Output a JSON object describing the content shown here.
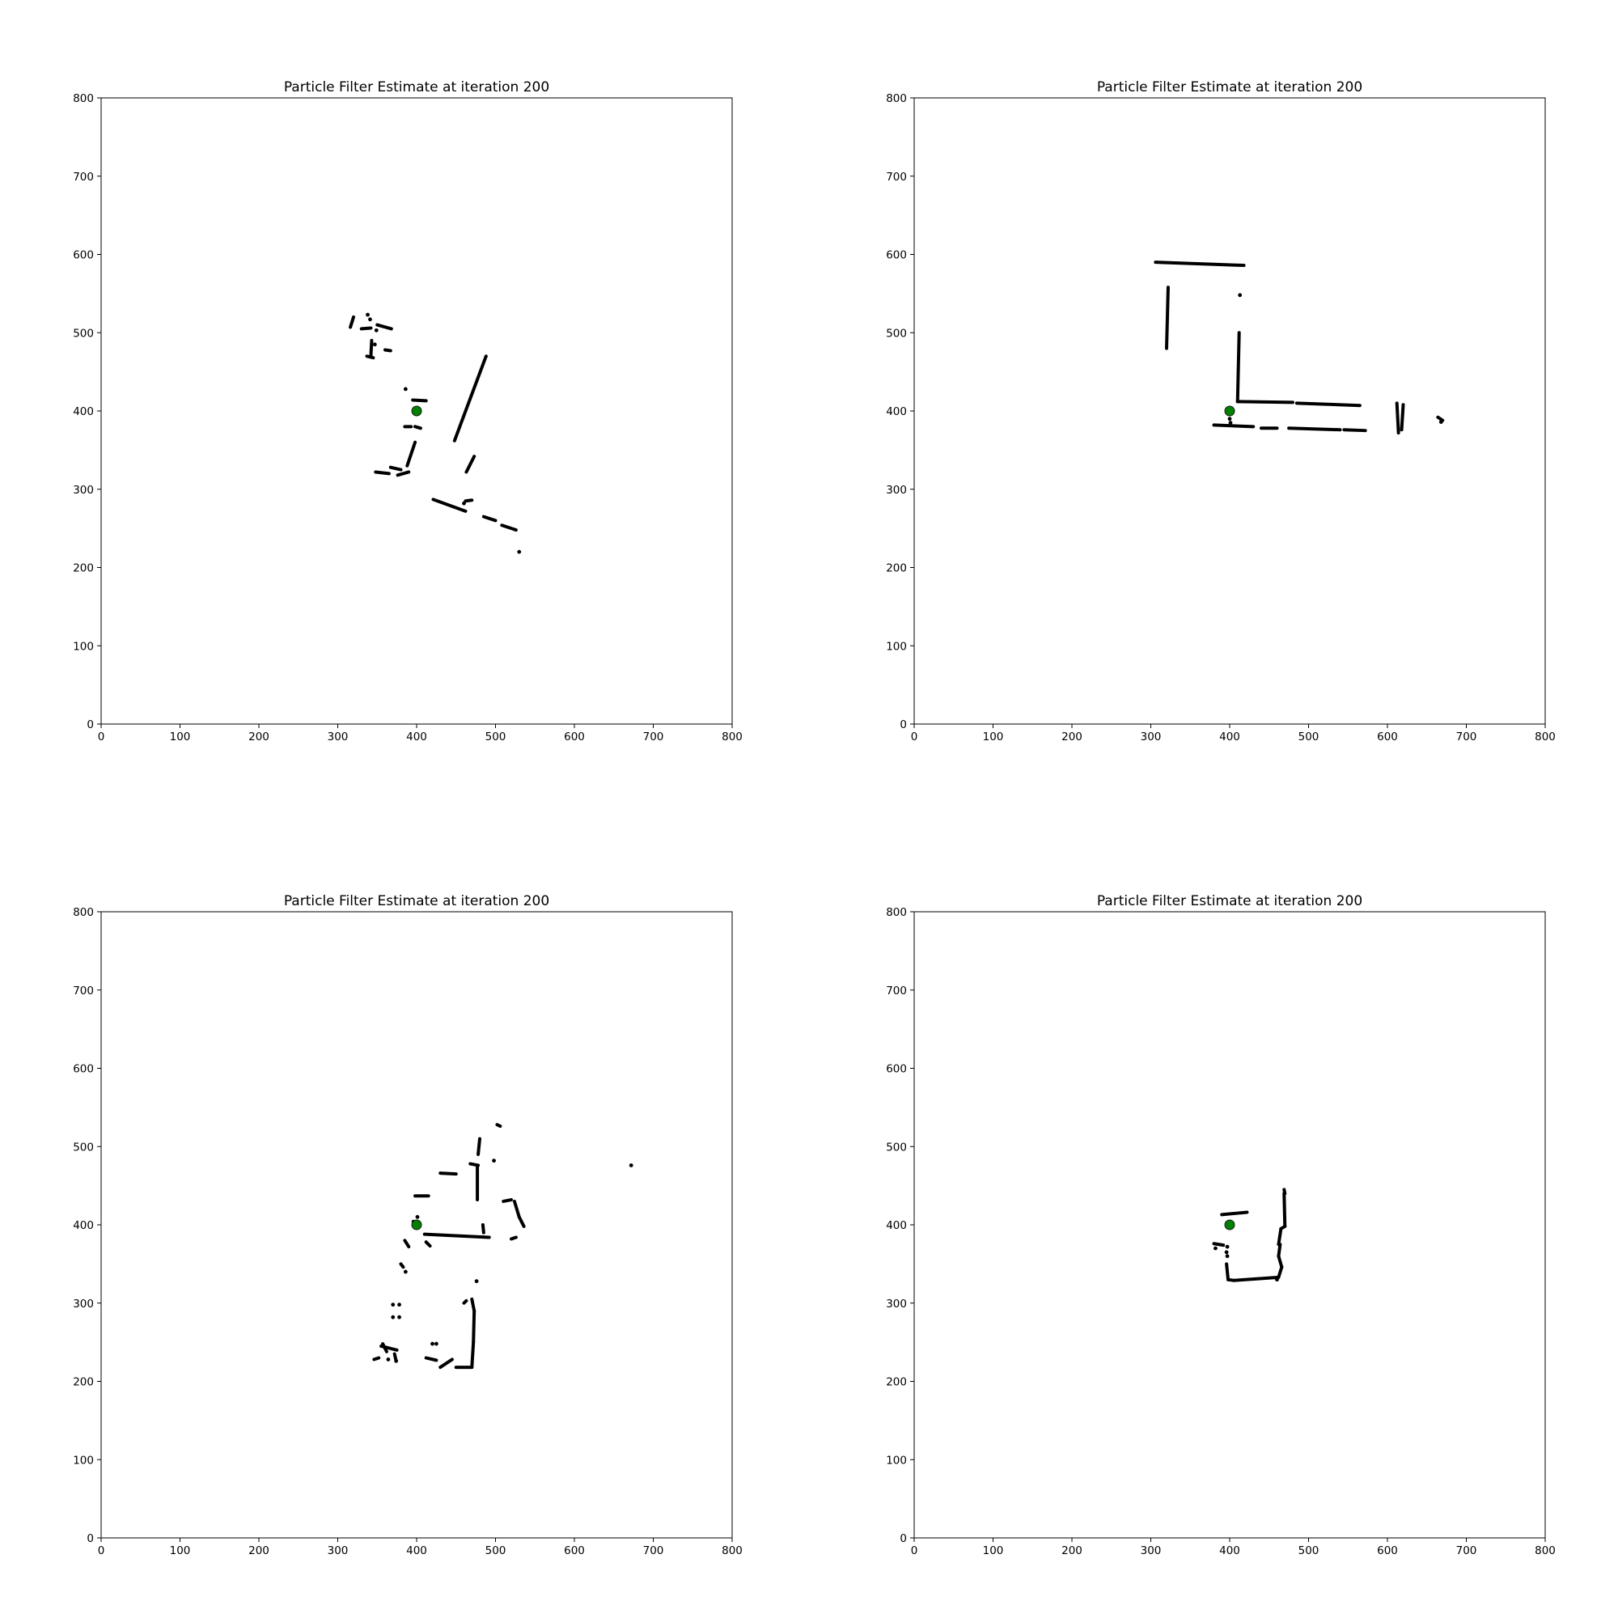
{
  "chart_data": [
    {
      "type": "scatter",
      "title": "Particle Filter Estimate at iteration 200",
      "xlabel": "",
      "ylabel": "",
      "xlim": [
        0,
        800
      ],
      "ylim": [
        0,
        800
      ],
      "xticks": [
        0,
        100,
        200,
        300,
        400,
        500,
        600,
        700,
        800
      ],
      "yticks": [
        0,
        100,
        200,
        300,
        400,
        500,
        600,
        700,
        800
      ],
      "grid": false,
      "estimate": {
        "x": 400,
        "y": 400,
        "color": "#008000"
      },
      "obstacle_color": "#000000",
      "segments": [
        [
          [
            320,
            520
          ],
          [
            316,
            507
          ]
        ],
        [
          [
            330,
            505
          ],
          [
            342,
            506
          ]
        ],
        [
          [
            350,
            510
          ],
          [
            368,
            505
          ]
        ],
        [
          [
            343,
            490
          ],
          [
            342,
            470
          ]
        ],
        [
          [
            337,
            470
          ],
          [
            345,
            468
          ]
        ],
        [
          [
            360,
            478
          ],
          [
            367,
            477
          ]
        ],
        [
          [
            395,
            414
          ],
          [
            412,
            413
          ]
        ],
        [
          [
            385,
            380
          ],
          [
            393,
            380
          ]
        ],
        [
          [
            398,
            380
          ],
          [
            405,
            378
          ]
        ],
        [
          [
            398,
            360
          ],
          [
            388,
            330
          ]
        ],
        [
          [
            348,
            322
          ],
          [
            365,
            320
          ]
        ],
        [
          [
            367,
            328
          ],
          [
            380,
            325
          ]
        ],
        [
          [
            376,
            318
          ],
          [
            390,
            322
          ]
        ],
        [
          [
            448,
            362
          ],
          [
            488,
            470
          ]
        ],
        [
          [
            463,
            322
          ],
          [
            473,
            342
          ]
        ],
        [
          [
            421,
            287
          ],
          [
            462,
            272
          ]
        ],
        [
          [
            462,
            285
          ],
          [
            470,
            286
          ]
        ],
        [
          [
            485,
            265
          ],
          [
            500,
            260
          ]
        ],
        [
          [
            508,
            254
          ],
          [
            526,
            248
          ]
        ]
      ],
      "points": [
        [
          338,
          523
        ],
        [
          341,
          517
        ],
        [
          349,
          503
        ],
        [
          347,
          485
        ],
        [
          386,
          428
        ],
        [
          460,
          282
        ],
        [
          530,
          220
        ]
      ]
    },
    {
      "type": "scatter",
      "title": "Particle Filter Estimate at iteration 200",
      "xlabel": "",
      "ylabel": "",
      "xlim": [
        0,
        800
      ],
      "ylim": [
        0,
        800
      ],
      "xticks": [
        0,
        100,
        200,
        300,
        400,
        500,
        600,
        700,
        800
      ],
      "yticks": [
        0,
        100,
        200,
        300,
        400,
        500,
        600,
        700,
        800
      ],
      "grid": false,
      "estimate": {
        "x": 400,
        "y": 400,
        "color": "#008000"
      },
      "obstacle_color": "#000000",
      "segments": [
        [
          [
            306,
            590
          ],
          [
            418,
            586
          ]
        ],
        [
          [
            322,
            558
          ],
          [
            320,
            480
          ]
        ],
        [
          [
            412,
            500
          ],
          [
            410,
            412
          ]
        ],
        [
          [
            410,
            412
          ],
          [
            480,
            411
          ]
        ],
        [
          [
            485,
            410
          ],
          [
            565,
            407
          ]
        ],
        [
          [
            380,
            382
          ],
          [
            430,
            380
          ]
        ],
        [
          [
            440,
            378
          ],
          [
            460,
            378
          ]
        ],
        [
          [
            475,
            378
          ],
          [
            540,
            376
          ]
        ],
        [
          [
            545,
            376
          ],
          [
            572,
            375
          ]
        ],
        [
          [
            612,
            410
          ],
          [
            614,
            372
          ]
        ],
        [
          [
            620,
            408
          ],
          [
            618,
            376
          ]
        ],
        [
          [
            664,
            392
          ],
          [
            670,
            388
          ]
        ]
      ],
      "points": [
        [
          400,
          390
        ],
        [
          401,
          385
        ],
        [
          413,
          548
        ],
        [
          668,
          386
        ]
      ]
    },
    {
      "type": "scatter",
      "title": "Particle Filter Estimate at iteration 200",
      "xlabel": "",
      "ylabel": "",
      "xlim": [
        0,
        800
      ],
      "ylim": [
        0,
        800
      ],
      "xticks": [
        0,
        100,
        200,
        300,
        400,
        500,
        600,
        700,
        800
      ],
      "yticks": [
        0,
        100,
        200,
        300,
        400,
        500,
        600,
        700,
        800
      ],
      "grid": false,
      "estimate": {
        "x": 400,
        "y": 400,
        "color": "#008000"
      },
      "obstacle_color": "#000000",
      "segments": [
        [
          [
            410,
            388
          ],
          [
            492,
            384
          ]
        ],
        [
          [
            398,
            437
          ],
          [
            415,
            437
          ]
        ],
        [
          [
            430,
            466
          ],
          [
            450,
            465
          ]
        ],
        [
          [
            468,
            478
          ],
          [
            478,
            476
          ]
        ],
        [
          [
            477,
            475
          ],
          [
            477,
            432
          ]
        ],
        [
          [
            478,
            490
          ],
          [
            480,
            510
          ]
        ],
        [
          [
            502,
            528
          ],
          [
            506,
            526
          ]
        ],
        [
          [
            510,
            430
          ],
          [
            520,
            432
          ]
        ],
        [
          [
            524,
            430
          ],
          [
            530,
            410
          ]
        ],
        [
          [
            530,
            410
          ],
          [
            536,
            398
          ]
        ],
        [
          [
            520,
            382
          ],
          [
            526,
            384
          ]
        ],
        [
          [
            484,
            400
          ],
          [
            485,
            390
          ]
        ],
        [
          [
            385,
            380
          ],
          [
            390,
            372
          ]
        ],
        [
          [
            380,
            350
          ],
          [
            383,
            346
          ]
        ],
        [
          [
            412,
            378
          ],
          [
            417,
            373
          ]
        ],
        [
          [
            470,
            305
          ],
          [
            473,
            290
          ]
        ],
        [
          [
            473,
            290
          ],
          [
            472,
            250
          ]
        ],
        [
          [
            472,
            250
          ],
          [
            470,
            218
          ]
        ],
        [
          [
            450,
            218
          ],
          [
            470,
            218
          ]
        ],
        [
          [
            430,
            218
          ],
          [
            445,
            228
          ]
        ],
        [
          [
            412,
            230
          ],
          [
            425,
            227
          ]
        ],
        [
          [
            346,
            228
          ],
          [
            352,
            230
          ]
        ],
        [
          [
            355,
            245
          ],
          [
            375,
            240
          ]
        ],
        [
          [
            372,
            235
          ],
          [
            374,
            226
          ]
        ],
        [
          [
            357,
            248
          ],
          [
            362,
            238
          ]
        ],
        [
          [
            460,
            300
          ],
          [
            463,
            303
          ]
        ]
      ],
      "points": [
        [
          370,
          298
        ],
        [
          378,
          298
        ],
        [
          370,
          282
        ],
        [
          378,
          282
        ],
        [
          374,
          226
        ],
        [
          364,
          228
        ],
        [
          386,
          340
        ],
        [
          420,
          248
        ],
        [
          425,
          248
        ],
        [
          476,
          328
        ],
        [
          498,
          482
        ],
        [
          672,
          476
        ],
        [
          396,
          404
        ],
        [
          401,
          410
        ]
      ]
    },
    {
      "type": "scatter",
      "title": "Particle Filter Estimate at iteration 200",
      "xlabel": "",
      "ylabel": "",
      "xlim": [
        0,
        800
      ],
      "ylim": [
        0,
        800
      ],
      "xticks": [
        0,
        100,
        200,
        300,
        400,
        500,
        600,
        700,
        800
      ],
      "yticks": [
        0,
        100,
        200,
        300,
        400,
        500,
        600,
        700,
        800
      ],
      "grid": false,
      "estimate": {
        "x": 400,
        "y": 400,
        "color": "#008000"
      },
      "obstacle_color": "#000000",
      "segments": [
        [
          [
            390,
            413
          ],
          [
            422,
            416
          ]
        ],
        [
          [
            380,
            376
          ],
          [
            392,
            374
          ]
        ],
        [
          [
            396,
            350
          ],
          [
            398,
            330
          ]
        ],
        [
          [
            398,
            330
          ],
          [
            405,
            329
          ]
        ],
        [
          [
            405,
            329
          ],
          [
            462,
            333
          ]
        ],
        [
          [
            462,
            333
          ],
          [
            466,
            346
          ]
        ],
        [
          [
            466,
            346
          ],
          [
            462,
            360
          ]
        ],
        [
          [
            462,
            360
          ],
          [
            464,
            375
          ]
        ],
        [
          [
            462,
            375
          ],
          [
            465,
            395
          ]
        ],
        [
          [
            465,
            395
          ],
          [
            470,
            398
          ]
        ],
        [
          [
            470,
            398
          ],
          [
            469,
            440
          ]
        ],
        [
          [
            469,
            445
          ],
          [
            470,
            440
          ]
        ]
      ],
      "points": [
        [
          397,
          360
        ],
        [
          396,
          365
        ],
        [
          397,
          372
        ],
        [
          382,
          370
        ],
        [
          460,
          330
        ]
      ]
    }
  ]
}
